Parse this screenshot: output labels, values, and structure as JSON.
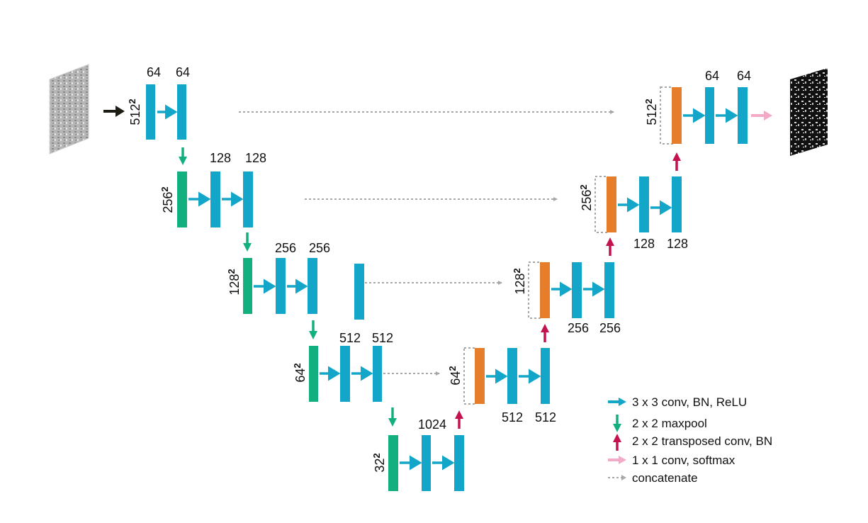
{
  "colors": {
    "conv": "#13a6c9",
    "pool": "#12b07f",
    "upconv": "#e67d2a",
    "transposed_arrow": "#c4124d",
    "softmax_arrow": "#f3a9c8",
    "concat": "#a8a8a8",
    "input_arrow": "#1d1d14"
  },
  "icons": {
    "input_image": "grayscale-input-image",
    "output_image": "binary-segmentation-output"
  },
  "resolutions": {
    "r512": "512",
    "r256": "256",
    "r128": "128",
    "r64": "64",
    "r32": "32",
    "superscript": "2"
  },
  "encoder": {
    "l1": [
      "64",
      "64"
    ],
    "l2": [
      "128",
      "128"
    ],
    "l3": [
      "256",
      "256"
    ],
    "l4": [
      "512",
      "512"
    ],
    "bottleneck": "1024"
  },
  "decoder": {
    "l4": [
      "512",
      "512"
    ],
    "l3": [
      "256",
      "256"
    ],
    "l2": [
      "128",
      "128"
    ],
    "l1": [
      "64",
      "64"
    ]
  },
  "legend": {
    "conv": "3 x 3 conv, BN, ReLU",
    "maxpool": "2 x 2 maxpool",
    "transposed": "2 x 2 transposed conv, BN",
    "softmax": "1 x 1 conv, softmax",
    "concat": "concatenate"
  }
}
